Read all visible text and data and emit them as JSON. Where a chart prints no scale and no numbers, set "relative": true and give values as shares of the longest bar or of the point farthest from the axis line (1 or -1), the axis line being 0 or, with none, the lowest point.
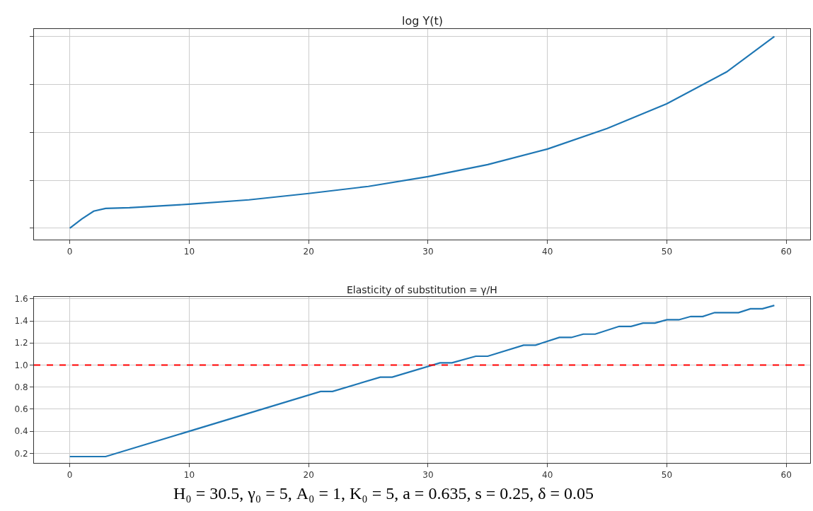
{
  "chart_data": [
    {
      "type": "line",
      "title": "log Y(t)",
      "relative": true,
      "tick_labels": "x",
      "grid": true,
      "marker": "none",
      "line_style": "solid",
      "xlim": [
        -3,
        62
      ],
      "xticks": [
        0,
        10,
        20,
        30,
        40,
        50,
        60
      ],
      "series": [
        {
          "color": "#1f77b4",
          "x": [
            0,
            1,
            2,
            3,
            5,
            10,
            15,
            20,
            25,
            30,
            35,
            40,
            45,
            50,
            55,
            59
          ],
          "values": [
            0,
            0.048,
            0.089,
            0.103,
            0.107,
            0.125,
            0.148,
            0.181,
            0.218,
            0.269,
            0.332,
            0.413,
            0.52,
            0.649,
            0.815,
            1
          ]
        }
      ]
    },
    {
      "type": "line",
      "title": "Elasticity of substitution = γ/H",
      "grid": true,
      "marker": "none",
      "line_style": "solid",
      "xlim": [
        -3,
        62
      ],
      "xticks": [
        0,
        10,
        20,
        30,
        40,
        50,
        60
      ],
      "ylim": [
        0.11,
        1.62
      ],
      "yticks": [
        {
          "value": 0.2,
          "label": "0.2"
        },
        {
          "value": 0.4,
          "label": "0.4"
        },
        {
          "value": 0.6,
          "label": "0.6"
        },
        {
          "value": 0.8,
          "label": "0.8"
        },
        {
          "value": 1.0,
          "label": "1.0"
        },
        {
          "value": 1.2,
          "label": "1.2"
        },
        {
          "value": 1.4,
          "label": "1.4"
        },
        {
          "value": 1.6,
          "label": "1.6"
        }
      ],
      "series": [
        {
          "color": "#1f77b4",
          "x": [
            0,
            3,
            21,
            22,
            26,
            27,
            31,
            32,
            34,
            35,
            38,
            39,
            41,
            42,
            43,
            44,
            46,
            47,
            48,
            49,
            50,
            51,
            52,
            53,
            54,
            56,
            57,
            58,
            59
          ],
          "values": [
            0.17,
            0.17,
            0.76,
            0.76,
            0.89,
            0.89,
            1.02,
            1.02,
            1.08,
            1.08,
            1.18,
            1.18,
            1.25,
            1.25,
            1.28,
            1.28,
            1.35,
            1.35,
            1.38,
            1.38,
            1.41,
            1.41,
            1.44,
            1.44,
            1.475,
            1.475,
            1.51,
            1.51,
            1.54
          ]
        }
      ],
      "ref_lines": [
        {
          "axis": "y",
          "value": 1.0,
          "color": "#ff0000",
          "line_style": "dashed"
        }
      ],
      "annotations": [
        "H₀ = 30.5, γ₀ = 5, A₀ = 1, K₀ = 5, a = 0.635, s = 0.25, δ = 0.05"
      ]
    }
  ]
}
